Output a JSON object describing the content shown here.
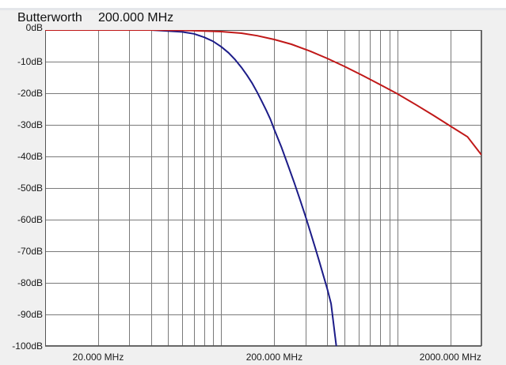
{
  "window": {
    "filter_name": "Butterworth",
    "center_frequency": "200.000 MHz"
  },
  "chart_data": {
    "type": "line",
    "x_scale": "log",
    "xlim": [
      10,
      3000
    ],
    "ylim": [
      -100,
      0
    ],
    "grid": true,
    "x_ticks": [
      {
        "value": 20,
        "label": "20.000 MHz"
      },
      {
        "value": 200,
        "label": "200.000 MHz"
      },
      {
        "value": 2000,
        "label": "2000.000 MHz"
      }
    ],
    "y_ticks": [
      {
        "value": 0,
        "label": "0dB"
      },
      {
        "value": -10,
        "label": "-10dB"
      },
      {
        "value": -20,
        "label": "-20dB"
      },
      {
        "value": -30,
        "label": "-30dB"
      },
      {
        "value": -40,
        "label": "-40dB"
      },
      {
        "value": -50,
        "label": "-50dB"
      },
      {
        "value": -60,
        "label": "-60dB"
      },
      {
        "value": -70,
        "label": "-70dB"
      },
      {
        "value": -80,
        "label": "-80dB"
      },
      {
        "value": -90,
        "label": "-90dB"
      },
      {
        "value": -100,
        "label": "-100dB"
      }
    ],
    "series": [
      {
        "color": "#1c1c88",
        "x": [
          10,
          20,
          40,
          60,
          70,
          80,
          90,
          100,
          110,
          120,
          130,
          140,
          150,
          160,
          170,
          180,
          190,
          200,
          220,
          240,
          260,
          280,
          300,
          320,
          340,
          360,
          380,
          400,
          420,
          450
        ],
        "y": [
          0,
          0,
          0,
          -0.6,
          -1.2,
          -2.3,
          -3.6,
          -5.3,
          -7.2,
          -9.4,
          -11.8,
          -14.3,
          -16.9,
          -19.7,
          -22.6,
          -25.4,
          -28.2,
          -31.5,
          -37.2,
          -43.0,
          -48.4,
          -53.7,
          -58.8,
          -63.8,
          -68.6,
          -73.2,
          -77.7,
          -82.0,
          -86.6,
          -100
        ]
      },
      {
        "color": "#c01818",
        "x": [
          10,
          20,
          40,
          60,
          80,
          100,
          130,
          160,
          200,
          250,
          320,
          400,
          500,
          640,
          800,
          1000,
          1280,
          1600,
          2000,
          2500,
          3000
        ],
        "y": [
          0,
          0,
          0,
          -0.1,
          -0.3,
          -0.5,
          -1.0,
          -1.8,
          -3.0,
          -4.5,
          -6.7,
          -9.0,
          -11.5,
          -14.5,
          -17.3,
          -20.2,
          -23.7,
          -27.0,
          -30.4,
          -33.8,
          -39.5
        ]
      }
    ]
  }
}
